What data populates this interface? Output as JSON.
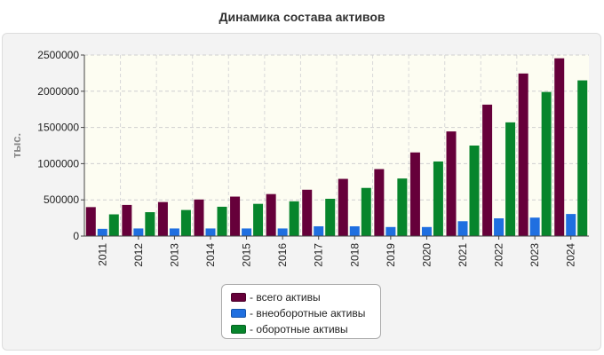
{
  "chart_data": {
    "type": "bar",
    "title": "Динамика состава активов",
    "ylabel": "тыс.",
    "xlabel": "",
    "ylim": [
      0,
      2500000
    ],
    "yticks": [
      0,
      500000,
      1000000,
      1500000,
      2000000,
      2500000
    ],
    "grid": true,
    "legend_position": "bottom",
    "categories": [
      "2011",
      "2012",
      "2013",
      "2014",
      "2015",
      "2016",
      "2017",
      "2018",
      "2019",
      "2020",
      "2021",
      "2022",
      "2023",
      "2024"
    ],
    "series": [
      {
        "name": "- всего активы",
        "color": "#66003a",
        "values": [
          400000,
          430000,
          470000,
          505000,
          545000,
          580000,
          640000,
          790000,
          925000,
          1155000,
          1445000,
          1815000,
          2245000,
          2455000
        ]
      },
      {
        "name": "- внеоборотные активы",
        "color": "#1f6fe0",
        "values": [
          100000,
          105000,
          105000,
          105000,
          105000,
          105000,
          135000,
          135000,
          125000,
          125000,
          205000,
          245000,
          255000,
          305000
        ]
      },
      {
        "name": "- оборотные активы",
        "color": "#07852c",
        "values": [
          300000,
          330000,
          360000,
          405000,
          445000,
          480000,
          515000,
          665000,
          795000,
          1030000,
          1250000,
          1570000,
          1990000,
          2150000
        ]
      }
    ]
  }
}
